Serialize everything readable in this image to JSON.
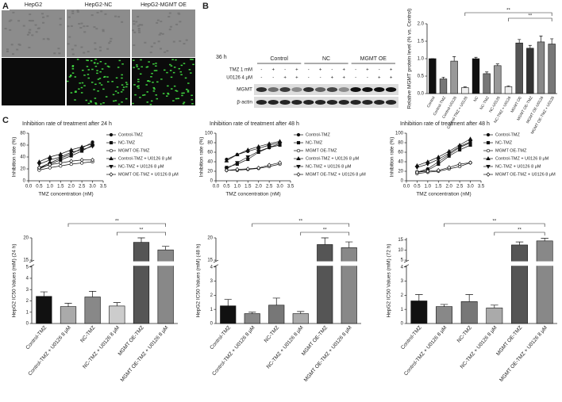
{
  "panel_labels": [
    "A",
    "B",
    "C"
  ],
  "panel_a": {
    "columns": [
      "HepG2",
      "HepG2-NC",
      "HepG2-MGMT OE"
    ]
  },
  "panel_b_blot": {
    "time": "36 h",
    "groups": [
      "Control",
      "NC",
      "MGMT OE"
    ],
    "rows": [
      {
        "label": "TMZ 1 mM",
        "signs": [
          "-",
          "+",
          "-",
          "+",
          "-",
          "+",
          "-",
          "+",
          "-",
          "+",
          "-",
          "+"
        ]
      },
      {
        "label": "U0126 4 μM",
        "signs": [
          "-",
          "-",
          "+",
          "+",
          "-",
          "-",
          "+",
          "+",
          "-",
          "-",
          "+",
          "+"
        ]
      }
    ],
    "bands": [
      "MGMT",
      "β-actin"
    ]
  },
  "chart_data": [
    {
      "type": "bar",
      "ylabel": "Relative MGMT protein level (% vs. Control)",
      "categories": [
        "Control",
        "Control-TMZ",
        "Control-U0126",
        "Control-TMZ + U0126",
        "NC",
        "NC-TMZ",
        "NC-U0126",
        "NC-TMZ + U0126",
        "MGMT OE",
        "MGMT OE-TMZ",
        "MGMT OE-U0126",
        "MGMT OE-TMZ + U0126"
      ],
      "values": [
        1.0,
        0.42,
        0.93,
        0.17,
        1.0,
        0.57,
        0.8,
        0.2,
        1.45,
        1.3,
        1.48,
        1.42
      ],
      "errors": [
        0,
        0.05,
        0.13,
        0.02,
        0.04,
        0.05,
        0.05,
        0.02,
        0.1,
        0.08,
        0.17,
        0.15
      ],
      "colors": [
        "#111",
        "#777",
        "#999",
        "#eee",
        "#111",
        "#777",
        "#999",
        "#eee",
        "#555",
        "#333",
        "#888",
        "#777"
      ],
      "ylim": [
        0,
        2
      ],
      "yticks": [
        {
          "value": 0,
          "label": "0.0"
        },
        {
          "value": 0.5,
          "label": "0.5"
        },
        {
          "value": 1,
          "label": "1.0"
        },
        {
          "value": 1.5,
          "label": "1.5"
        },
        {
          "value": 2,
          "label": "2.0"
        }
      ],
      "significance": [
        {
          "label": "**",
          "between": [
            3,
            11
          ]
        },
        {
          "label": "**",
          "between": [
            7,
            11
          ]
        }
      ]
    },
    {
      "type": "line",
      "title": "Inhibition rate of treatment after 24 h",
      "xlabel": "TMZ concentration (nM)",
      "ylabel": "Inhibition rate (%)",
      "x": [
        0.5,
        1,
        1.5,
        2,
        2.5,
        3
      ],
      "series": [
        {
          "name": "Control-TMZ",
          "color": "#111",
          "marker": "circle",
          "values": [
            22,
            30,
            38,
            45,
            55,
            65
          ]
        },
        {
          "name": "NC-TMZ",
          "color": "#111",
          "marker": "square",
          "values": [
            20,
            28,
            35,
            42,
            50,
            60
          ]
        },
        {
          "name": "MGMT OE-TMZ",
          "color": "#111",
          "marker": "open-circle",
          "values": [
            18,
            22,
            25,
            28,
            30,
            32
          ]
        },
        {
          "name": "Control-TMZ + U0126 8 μM",
          "color": "#111",
          "marker": "triangle",
          "values": [
            32,
            40,
            45,
            52,
            57,
            62
          ]
        },
        {
          "name": "NC-TMZ + U0126 8 μM",
          "color": "#111",
          "marker": "inverted-triangle",
          "values": [
            28,
            35,
            40,
            48,
            52,
            58
          ]
        },
        {
          "name": "MGMT OE-TMZ + U0126 8 μM",
          "color": "#111",
          "marker": "open-diamond",
          "values": [
            22,
            27,
            30,
            33,
            35,
            35
          ]
        }
      ],
      "xlim": [
        0,
        3.5
      ],
      "xticks": [
        {
          "value": 0,
          "label": "0.0"
        },
        0.5,
        {
          "value": 1,
          "label": "1.0"
        },
        1.5,
        {
          "value": 2,
          "label": "2.0"
        },
        2.5,
        {
          "value": 3,
          "label": "3.0"
        },
        3.5
      ],
      "ylim": [
        0,
        80
      ],
      "yticks": [
        0,
        20,
        40,
        60,
        80
      ]
    },
    {
      "type": "line",
      "title": "Inhibition rate of treatment after 48 h",
      "xlabel": "TMZ concentration (nM)",
      "ylabel": "Inhibition rate (%)",
      "x": [
        0.5,
        1,
        1.5,
        2,
        2.5,
        3
      ],
      "series": [
        {
          "name": "Control-TMZ",
          "color": "#111",
          "marker": "circle",
          "values": [
            45,
            55,
            62,
            68,
            75,
            80
          ]
        },
        {
          "name": "NC-TMZ",
          "color": "#111",
          "marker": "square",
          "values": [
            28,
            35,
            45,
            60,
            70,
            75
          ]
        },
        {
          "name": "MGMT OE-TMZ",
          "color": "#111",
          "marker": "open-circle",
          "values": [
            22,
            22,
            24,
            26,
            30,
            35
          ]
        },
        {
          "name": "Control-TMZ + U0126 8 μM",
          "color": "#111",
          "marker": "triangle",
          "values": [
            42,
            55,
            65,
            72,
            78,
            83
          ]
        },
        {
          "name": "NC-TMZ + U0126 8 μM",
          "color": "#111",
          "marker": "inverted-triangle",
          "values": [
            25,
            38,
            50,
            62,
            70,
            78
          ]
        },
        {
          "name": "MGMT OE-TMZ + U0126 8 μM",
          "color": "#111",
          "marker": "open-diamond",
          "values": [
            22,
            24,
            25,
            27,
            33,
            38
          ]
        }
      ],
      "xlim": [
        0,
        3.5
      ],
      "xticks": [
        {
          "value": 0,
          "label": "0.0"
        },
        0.5,
        {
          "value": 1,
          "label": "1.0"
        },
        1.5,
        {
          "value": 2,
          "label": "2.0"
        },
        2.5,
        {
          "value": 3,
          "label": "3.0"
        },
        3.5
      ],
      "ylim": [
        0,
        100
      ],
      "yticks": [
        0,
        20,
        40,
        60,
        80,
        100
      ]
    },
    {
      "type": "line",
      "title": "Inhibition rate of treatment after 48 h",
      "xlabel": "TMZ concentration (nM)",
      "ylabel": "Inhibition rate (%)",
      "x": [
        0.5,
        1,
        1.5,
        2,
        2.5,
        3
      ],
      "series": [
        {
          "name": "Control-TMZ",
          "color": "#111",
          "marker": "circle",
          "values": [
            18,
            25,
            40,
            55,
            70,
            80
          ]
        },
        {
          "name": "NC-TMZ",
          "color": "#111",
          "marker": "square",
          "values": [
            18,
            22,
            35,
            52,
            65,
            75
          ]
        },
        {
          "name": "MGMT OE-TMZ",
          "color": "#111",
          "marker": "open-circle",
          "values": [
            15,
            18,
            20,
            25,
            30,
            38
          ]
        },
        {
          "name": "Control-TMZ + U0126 8 μM",
          "color": "#111",
          "marker": "triangle",
          "values": [
            32,
            40,
            50,
            62,
            75,
            88
          ]
        },
        {
          "name": "NC-TMZ + U0126 8 μM",
          "color": "#111",
          "marker": "inverted-triangle",
          "values": [
            28,
            35,
            45,
            58,
            72,
            82
          ]
        },
        {
          "name": "MGMT OE-TMZ + U0126 8 μM",
          "color": "#111",
          "marker": "open-diamond",
          "values": [
            18,
            20,
            22,
            28,
            35,
            38
          ]
        }
      ],
      "xlim": [
        0,
        3.5
      ],
      "xticks": [
        {
          "value": 0,
          "label": "0.0"
        },
        0.5,
        {
          "value": 1,
          "label": "1.0"
        },
        1.5,
        {
          "value": 2,
          "label": "2.0"
        },
        2.5,
        {
          "value": 3,
          "label": "3.0"
        },
        3.5
      ],
      "ylim": [
        0,
        100
      ],
      "yticks": [
        0,
        20,
        40,
        60,
        80,
        100
      ]
    },
    {
      "type": "bar",
      "ylabel": "HepG2 IC50 Values (mM) (24 h)",
      "categories": [
        "Control-TMZ",
        "Control-TMZ + U0126 8 μM",
        "NC-TMZ",
        "NC-TMZ + U0126 8 μM",
        "MGMT OE-TMZ",
        "MGMT OE-TMZ + U0126 8 μM"
      ],
      "values": [
        2.4,
        1.5,
        2.35,
        1.55,
        19,
        17.3
      ],
      "errors": [
        0.4,
        0.3,
        0.5,
        0.3,
        1,
        0.8
      ],
      "colors": [
        "#111",
        "#aaa",
        "#888",
        "#ccc",
        "#555",
        "#888"
      ],
      "ylim": [
        0,
        20
      ],
      "ybreak": [
        5,
        15
      ],
      "yticks": [
        0,
        1,
        2,
        3,
        4,
        5,
        15,
        20
      ],
      "significance": [
        {
          "label": "**",
          "between": [
            1,
            5
          ]
        },
        {
          "label": "**",
          "between": [
            3,
            5
          ]
        }
      ]
    },
    {
      "type": "bar",
      "ylabel": "HepG2 IC50 Values (mM) (48 h)",
      "categories": [
        "Control-TMZ",
        "Control-TMZ + U0126 8 μM",
        "NC-TMZ",
        "NC-TMZ + U0126 8 μM",
        "MGMT OE-TMZ",
        "MGMT OE-TMZ + U0126 8 μM"
      ],
      "values": [
        1.25,
        0.7,
        1.3,
        0.7,
        18.5,
        17.8
      ],
      "errors": [
        0.45,
        0.1,
        0.5,
        0.15,
        1.5,
        1.3
      ],
      "colors": [
        "#111",
        "#888",
        "#777",
        "#aaa",
        "#555",
        "#888"
      ],
      "ylim": [
        0,
        20
      ],
      "ybreak": [
        4,
        15
      ],
      "yticks": [
        0,
        1,
        2,
        3,
        4,
        15,
        20
      ],
      "significance": [
        {
          "label": "**",
          "between": [
            1,
            5
          ]
        },
        {
          "label": "**",
          "between": [
            3,
            5
          ]
        }
      ]
    },
    {
      "type": "bar",
      "ylabel": "HepG2 IC50 Values (mM) (72 h)",
      "categories": [
        "Control-TMZ",
        "Control-TMZ + U0126 8 μM",
        "NC-TMZ",
        "NC-TMZ + U0126 8 μM",
        "MGMT OE-TMZ",
        "MGMT OE-TMZ + U0126 8 μM"
      ],
      "values": [
        1.6,
        1.2,
        1.55,
        1.1,
        12.5,
        14.5
      ],
      "errors": [
        0.45,
        0.15,
        0.5,
        0.2,
        1.5,
        1.3
      ],
      "colors": [
        "#111",
        "#888",
        "#777",
        "#aaa",
        "#555",
        "#888"
      ],
      "ylim": [
        0,
        16
      ],
      "ybreak": [
        4,
        5
      ],
      "yticks": [
        0,
        1,
        2,
        3,
        4,
        5,
        10,
        15
      ],
      "significance": [
        {
          "label": "**",
          "between": [
            1,
            5
          ]
        },
        {
          "label": "**",
          "between": [
            3,
            5
          ]
        }
      ]
    }
  ]
}
